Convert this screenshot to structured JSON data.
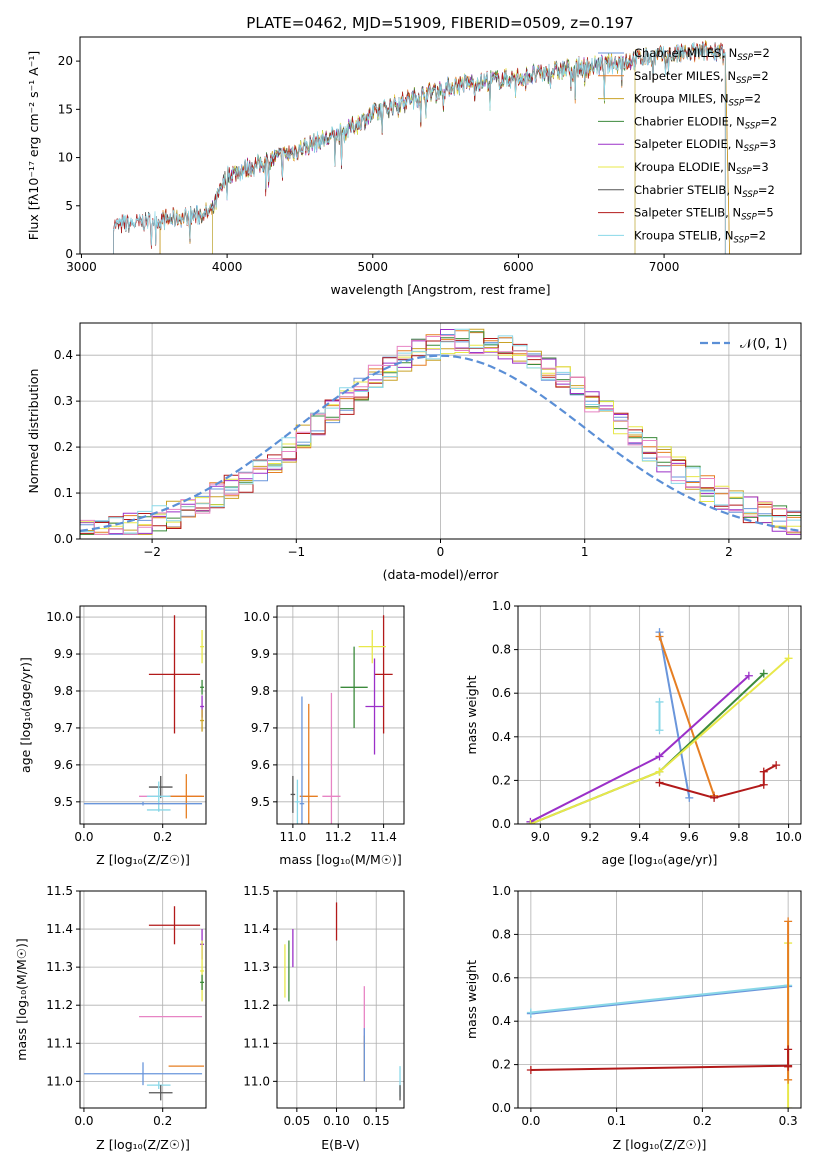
{
  "title": "PLATE=0462, MJD=51909, FIBERID=0509, z=0.197",
  "colors": [
    "#6a96db",
    "#e67e22",
    "#c9a227",
    "#3b8a3b",
    "#9b30c8",
    "#e8e84a",
    "#555555",
    "#b21a1a",
    "#8ad8e8",
    "#e784c4"
  ],
  "chart_data": [
    {
      "id": "spectrum",
      "type": "line",
      "title": "PLATE=0462, MJD=51909, FIBERID=0509, z=0.197",
      "xlabel": "wavelength [Angstrom, rest frame]",
      "ylabel": "Flux [fλ10⁻¹⁷ erg cm⁻² s⁻¹ A⁻¹]",
      "xlim": [
        2990,
        7940
      ],
      "ylim": [
        0,
        22.5
      ],
      "xticks": [
        3000,
        4000,
        5000,
        6000,
        7000
      ],
      "yticks": [
        0,
        5,
        10,
        15,
        20
      ],
      "legend": "upper right",
      "series": [
        {
          "name": "Chabrier MILES, N_SSP=2",
          "label_main": "Chabrier MILES, N",
          "label_sub": "SSP",
          "label_tail": "=2",
          "color": "#6a96db",
          "range": [
            3540,
            7450
          ]
        },
        {
          "name": "Salpeter MILES, N_SSP=2",
          "label_main": "Salpeter MILES, N",
          "label_sub": "SSP",
          "label_tail": "=2",
          "color": "#e67e22",
          "range": [
            3540,
            7450
          ]
        },
        {
          "name": "Kroupa MILES, N_SSP=2",
          "label_main": "Kroupa MILES, N",
          "label_sub": "SSP",
          "label_tail": "=2",
          "color": "#c9a227",
          "range": [
            3540,
            7450
          ]
        },
        {
          "name": "Chabrier ELODIE, N_SSP=2",
          "label_main": "Chabrier ELODIE, N",
          "label_sub": "SSP",
          "label_tail": "=2",
          "color": "#3b8a3b",
          "range": [
            3900,
            6800
          ]
        },
        {
          "name": "Salpeter ELODIE, N_SSP=3",
          "label_main": "Salpeter ELODIE, N",
          "label_sub": "SSP",
          "label_tail": "=3",
          "color": "#9b30c8",
          "range": [
            3900,
            6800
          ]
        },
        {
          "name": "Kroupa ELODIE, N_SSP=3",
          "label_main": "Kroupa ELODIE, N",
          "label_sub": "SSP",
          "label_tail": "=3",
          "color": "#e8e84a",
          "range": [
            3900,
            6800
          ]
        },
        {
          "name": "Chabrier STELIB, N_SSP=2",
          "label_main": "Chabrier STELIB, N",
          "label_sub": "SSP",
          "label_tail": "=2",
          "color": "#555555",
          "range": [
            3220,
            7420
          ]
        },
        {
          "name": "Salpeter STELIB, N_SSP=5",
          "label_main": "Salpeter STELIB, N",
          "label_sub": "SSP",
          "label_tail": "=5",
          "color": "#b21a1a",
          "range": [
            3220,
            7420
          ]
        },
        {
          "name": "Kroupa STELIB, N_SSP=2",
          "label_main": "Kroupa STELIB, N",
          "label_sub": "SSP",
          "label_tail": "=2",
          "color": "#8ad8e8",
          "range": [
            3220,
            7420
          ]
        }
      ],
      "continuum": [
        [
          3220,
          3.0
        ],
        [
          3500,
          3.4
        ],
        [
          3800,
          4.0
        ],
        [
          3900,
          4.5
        ],
        [
          4000,
          8.2
        ],
        [
          4200,
          9.2
        ],
        [
          4400,
          10.3
        ],
        [
          4600,
          11.5
        ],
        [
          4800,
          12.6
        ],
        [
          5000,
          14.5
        ],
        [
          5200,
          15.8
        ],
        [
          5400,
          16.8
        ],
        [
          5600,
          17.6
        ],
        [
          5800,
          18.0
        ],
        [
          6000,
          18.3
        ],
        [
          6200,
          18.8
        ],
        [
          6400,
          19.3
        ],
        [
          6600,
          19.6
        ],
        [
          6800,
          20.2
        ],
        [
          7000,
          20.5
        ],
        [
          7200,
          20.9
        ],
        [
          7420,
          21.2
        ]
      ]
    },
    {
      "id": "residuals",
      "type": "histogram",
      "xlabel": "(data-model)/error",
      "ylabel": "Normed distribution",
      "xlim": [
        -2.5,
        2.5
      ],
      "ylim": [
        0,
        0.47
      ],
      "xticks": [
        -2,
        -1,
        0,
        1,
        2
      ],
      "yticks": [
        0.0,
        0.1,
        0.2,
        0.3,
        0.4
      ],
      "bin_width": 0.1,
      "gaussian_label": "𝒩(0, 1)",
      "gaussian_color": "#5b8fd6",
      "legend": "upper right"
    },
    {
      "id": "age_vs_Z",
      "type": "errorbar",
      "xlabel": "Z [log₁₀(Z/Z☉)]",
      "ylabel": "age  [log₁₀(age/yr)]",
      "xlim": [
        -0.01,
        0.31
      ],
      "ylim": [
        9.44,
        10.03
      ],
      "xticks": [
        0.0,
        0.2
      ],
      "yticks": [
        9.5,
        9.6,
        9.7,
        9.8,
        9.9,
        10.0
      ],
      "points": [
        {
          "x": 0.23,
          "xerr": 0.065,
          "y": 9.845,
          "yerr": 0.16,
          "color": "#b21a1a"
        },
        {
          "x": 0.3,
          "xerr": 0.005,
          "y": 9.92,
          "yerr": 0.045,
          "color": "#e8e84a"
        },
        {
          "x": 0.3,
          "xerr": 0.005,
          "y": 9.81,
          "yerr": 0.02,
          "color": "#3b8a3b"
        },
        {
          "x": 0.3,
          "xerr": 0.005,
          "y": 9.758,
          "yerr": 0.03,
          "color": "#9b30c8"
        },
        {
          "x": 0.3,
          "xerr": 0.005,
          "y": 9.72,
          "yerr": 0.03,
          "color": "#c9a227"
        },
        {
          "x": 0.22,
          "xerr": 0.08,
          "y": 9.515,
          "yerr": 0.0,
          "color": "#e784c4"
        },
        {
          "x": 0.26,
          "xerr": 0.045,
          "y": 9.515,
          "yerr": 0.06,
          "color": "#e67e22"
        },
        {
          "x": 0.195,
          "xerr": 0.03,
          "y": 9.54,
          "yerr": 0.03,
          "color": "#555555"
        },
        {
          "x": 0.19,
          "xerr": 0.03,
          "y": 9.515,
          "yerr": 0.04,
          "color": "#8ad8e8"
        },
        {
          "x": 0.15,
          "xerr": 0.15,
          "y": 9.495,
          "yerr": 0.005,
          "color": "#6a96db"
        },
        {
          "x": 0.19,
          "xerr": 0.03,
          "y": 9.478,
          "yerr": 0.005,
          "color": "#8ad8e8"
        }
      ]
    },
    {
      "id": "age_vs_mass",
      "type": "errorbar",
      "xlabel": "mass [log₁₀(M/M☉)]",
      "ylabel": "",
      "xlim": [
        10.93,
        11.49
      ],
      "ylim": [
        9.44,
        10.03
      ],
      "xticks": [
        11.0,
        11.2,
        11.4
      ],
      "yticks": [
        9.5,
        9.6,
        9.7,
        9.8,
        9.9,
        10.0
      ],
      "points": [
        {
          "x": 11.4,
          "xerr": 0.04,
          "y": 9.845,
          "yerr": 0.16,
          "color": "#b21a1a"
        },
        {
          "x": 11.35,
          "xerr": 0.06,
          "y": 9.92,
          "yerr": 0.045,
          "color": "#e8e84a"
        },
        {
          "x": 11.27,
          "xerr": 0.06,
          "y": 9.81,
          "yerr": 0.11,
          "color": "#3b8a3b"
        },
        {
          "x": 11.36,
          "xerr": 0.04,
          "y": 9.758,
          "yerr": 0.13,
          "color": "#9b30c8"
        },
        {
          "x": 11.17,
          "xerr": 0.04,
          "y": 9.515,
          "yerr": 0.28,
          "color": "#e784c4"
        },
        {
          "x": 11.07,
          "xerr": 0.04,
          "y": 9.515,
          "yerr": 0.25,
          "color": "#e67e22"
        },
        {
          "x": 11.04,
          "xerr": 0.01,
          "y": 9.495,
          "yerr": 0.29,
          "color": "#6a96db"
        },
        {
          "x": 11.0,
          "xerr": 0.01,
          "y": 9.52,
          "yerr": 0.05,
          "color": "#555555"
        },
        {
          "x": 11.02,
          "xerr": 0.01,
          "y": 9.5,
          "yerr": 0.06,
          "color": "#8ad8e8"
        }
      ]
    },
    {
      "id": "massweight_vs_age",
      "type": "line",
      "xlabel": "age  [log₁₀(age/yr)]",
      "ylabel": "mass weight",
      "xlim": [
        8.91,
        10.05
      ],
      "ylim": [
        0,
        1.0
      ],
      "xticks": [
        9.0,
        9.2,
        9.4,
        9.6,
        9.8,
        10.0
      ],
      "yticks": [
        0.0,
        0.2,
        0.4,
        0.6,
        0.8,
        1.0
      ],
      "series": [
        {
          "color": "#6a96db",
          "points": [
            [
              9.48,
              0.88
            ],
            [
              9.6,
              0.12
            ]
          ]
        },
        {
          "color": "#e67e22",
          "points": [
            [
              9.48,
              0.86
            ],
            [
              9.7,
              0.13
            ]
          ]
        },
        {
          "color": "#9b30c8",
          "points": [
            [
              8.96,
              0.01
            ],
            [
              9.48,
              0.31
            ],
            [
              9.84,
              0.68
            ]
          ]
        },
        {
          "color": "#3b8a3b",
          "points": [
            [
              8.96,
              0.0
            ],
            [
              9.48,
              0.24
            ],
            [
              9.9,
              0.69
            ]
          ]
        },
        {
          "color": "#e8e84a",
          "points": [
            [
              8.96,
              0.0
            ],
            [
              9.48,
              0.24
            ],
            [
              10.0,
              0.76
            ]
          ]
        },
        {
          "color": "#b21a1a",
          "points": [
            [
              9.48,
              0.19
            ],
            [
              9.7,
              0.12
            ],
            [
              9.9,
              0.18
            ],
            [
              9.9,
              0.24
            ],
            [
              9.95,
              0.27
            ]
          ]
        },
        {
          "color": "#8ad8e8",
          "points": [
            [
              9.48,
              0.56
            ],
            [
              9.48,
              0.43
            ]
          ]
        }
      ]
    },
    {
      "id": "mass_vs_Z",
      "type": "errorbar",
      "xlabel": "Z [log₁₀(Z/Z☉)]",
      "ylabel": "mass [log₁₀(M/M☉)]",
      "xlim": [
        -0.01,
        0.31
      ],
      "ylim": [
        10.93,
        11.5
      ],
      "xticks": [
        0.0,
        0.2
      ],
      "yticks": [
        11.0,
        11.1,
        11.2,
        11.3,
        11.4,
        11.5
      ],
      "points": [
        {
          "x": 0.23,
          "xerr": 0.065,
          "y": 11.41,
          "yerr": 0.05,
          "color": "#b21a1a"
        },
        {
          "x": 0.3,
          "xerr": 0.005,
          "y": 11.36,
          "yerr": 0.04,
          "color": "#9b30c8"
        },
        {
          "x": 0.3,
          "xerr": 0.005,
          "y": 11.29,
          "yerr": 0.08,
          "color": "#e8e84a"
        },
        {
          "x": 0.3,
          "xerr": 0.005,
          "y": 11.26,
          "yerr": 0.02,
          "color": "#3b8a3b"
        },
        {
          "x": 0.22,
          "xerr": 0.08,
          "y": 11.17,
          "yerr": 0.0,
          "color": "#e784c4"
        },
        {
          "x": 0.26,
          "xerr": 0.045,
          "y": 11.04,
          "yerr": 0.0,
          "color": "#e67e22"
        },
        {
          "x": 0.15,
          "xerr": 0.15,
          "y": 11.02,
          "yerr": 0.03,
          "color": "#6a96db"
        },
        {
          "x": 0.19,
          "xerr": 0.03,
          "y": 10.99,
          "yerr": 0.01,
          "color": "#8ad8e8"
        },
        {
          "x": 0.195,
          "xerr": 0.03,
          "y": 10.97,
          "yerr": 0.02,
          "color": "#555555"
        }
      ]
    },
    {
      "id": "mass_vs_ebv",
      "type": "errorbar",
      "xlabel": "E(B-V)",
      "ylabel": "",
      "xlim": [
        0.025,
        0.185
      ],
      "ylim": [
        10.93,
        11.5
      ],
      "xticks": [
        0.05,
        0.1,
        0.15
      ],
      "yticks": [
        11.0,
        11.1,
        11.2,
        11.3,
        11.4,
        11.5
      ],
      "points": [
        {
          "x": 0.1,
          "xerr": 0.0,
          "y": 11.42,
          "yerr": 0.05,
          "color": "#b21a1a"
        },
        {
          "x": 0.045,
          "xerr": 0.0,
          "y": 11.35,
          "yerr": 0.05,
          "color": "#9b30c8"
        },
        {
          "x": 0.04,
          "xerr": 0.0,
          "y": 11.29,
          "yerr": 0.08,
          "color": "#3b8a3b"
        },
        {
          "x": 0.035,
          "xerr": 0.0,
          "y": 11.29,
          "yerr": 0.07,
          "color": "#e8e84a"
        },
        {
          "x": 0.135,
          "xerr": 0.0,
          "y": 11.17,
          "yerr": 0.08,
          "color": "#e784c4"
        },
        {
          "x": 0.135,
          "xerr": 0.0,
          "y": 11.06,
          "yerr": 0.06,
          "color": "#e67e22"
        },
        {
          "x": 0.135,
          "xerr": 0.0,
          "y": 11.07,
          "yerr": 0.07,
          "color": "#6a96db"
        },
        {
          "x": 0.18,
          "xerr": 0.0,
          "y": 11.0,
          "yerr": 0.04,
          "color": "#8ad8e8"
        },
        {
          "x": 0.18,
          "xerr": 0.0,
          "y": 10.97,
          "yerr": 0.02,
          "color": "#555555"
        }
      ]
    },
    {
      "id": "massweight_vs_Z",
      "type": "line",
      "xlabel": "Z [log₁₀(Z/Z☉)]",
      "ylabel": "mass weight",
      "xlim": [
        -0.015,
        0.315
      ],
      "ylim": [
        0,
        1.0
      ],
      "xticks": [
        0.0,
        0.1,
        0.2,
        0.3
      ],
      "yticks": [
        0.0,
        0.2,
        0.4,
        0.6,
        0.8,
        1.0
      ],
      "series": [
        {
          "color": "#6a96db",
          "points": [
            [
              0.0,
              0.435
            ],
            [
              0.3,
              0.56
            ]
          ]
        },
        {
          "color": "#8ad8e8",
          "points": [
            [
              0.0,
              0.44
            ],
            [
              0.3,
              0.565
            ]
          ]
        },
        {
          "color": "#b21a1a",
          "points": [
            [
              0.0,
              0.175
            ],
            [
              0.3,
              0.195
            ]
          ]
        },
        {
          "color": "#e8e84a",
          "points": [
            [
              0.3,
              0.0
            ],
            [
              0.3,
              0.76
            ]
          ]
        },
        {
          "color": "#e67e22",
          "points": [
            [
              0.3,
              0.13
            ],
            [
              0.3,
              0.86
            ]
          ]
        },
        {
          "color": "#b21a1a",
          "points": [
            [
              0.3,
              0.19
            ],
            [
              0.3,
              0.27
            ]
          ]
        }
      ]
    }
  ]
}
